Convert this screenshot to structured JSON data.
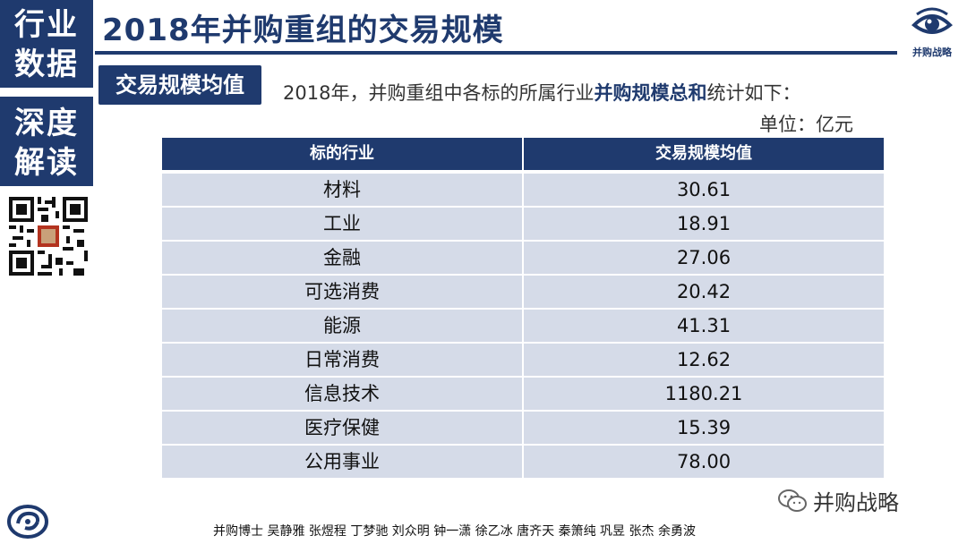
{
  "sidebar": {
    "tag_top": [
      "行业",
      "数据"
    ],
    "tag_bottom": [
      "深度",
      "解读"
    ]
  },
  "header": {
    "title": "2018年并购重组的交易规模",
    "logo_caption": "并购战略"
  },
  "section": {
    "subtitle": "交易规模均值",
    "intro_prefix": "2018年，并购重组中各标的所属行业",
    "intro_bold": "并购规模总和",
    "intro_suffix": "统计如下：",
    "unit": "单位：亿元"
  },
  "table": {
    "headers": [
      "标的行业",
      "交易规模均值"
    ],
    "rows": [
      {
        "industry": "材料",
        "value": "30.61"
      },
      {
        "industry": "工业",
        "value": "18.91"
      },
      {
        "industry": "金融",
        "value": "27.06"
      },
      {
        "industry": "可选消费",
        "value": "20.42"
      },
      {
        "industry": "能源",
        "value": "41.31"
      },
      {
        "industry": "日常消费",
        "value": "12.62"
      },
      {
        "industry": "信息技术",
        "value": "1180.21"
      },
      {
        "industry": "医疗保健",
        "value": "15.39"
      },
      {
        "industry": "公用事业",
        "value": "78.00"
      }
    ]
  },
  "footer": {
    "wechat_name": "并购战略",
    "authors": "并购博士 吴静雅 张煜程 丁梦驰 刘众明 钟一潇 徐乙冰 唐齐天 秦箫纯 巩昱 张杰 余勇波"
  },
  "colors": {
    "brand": "#1f3a6e",
    "row_bg": "#d5dbe8"
  },
  "icons": {
    "logo": "eye-icon",
    "qr": "qr-code-icon",
    "bottom_logo": "swirl-logo-icon",
    "wechat": "wechat-icon"
  }
}
